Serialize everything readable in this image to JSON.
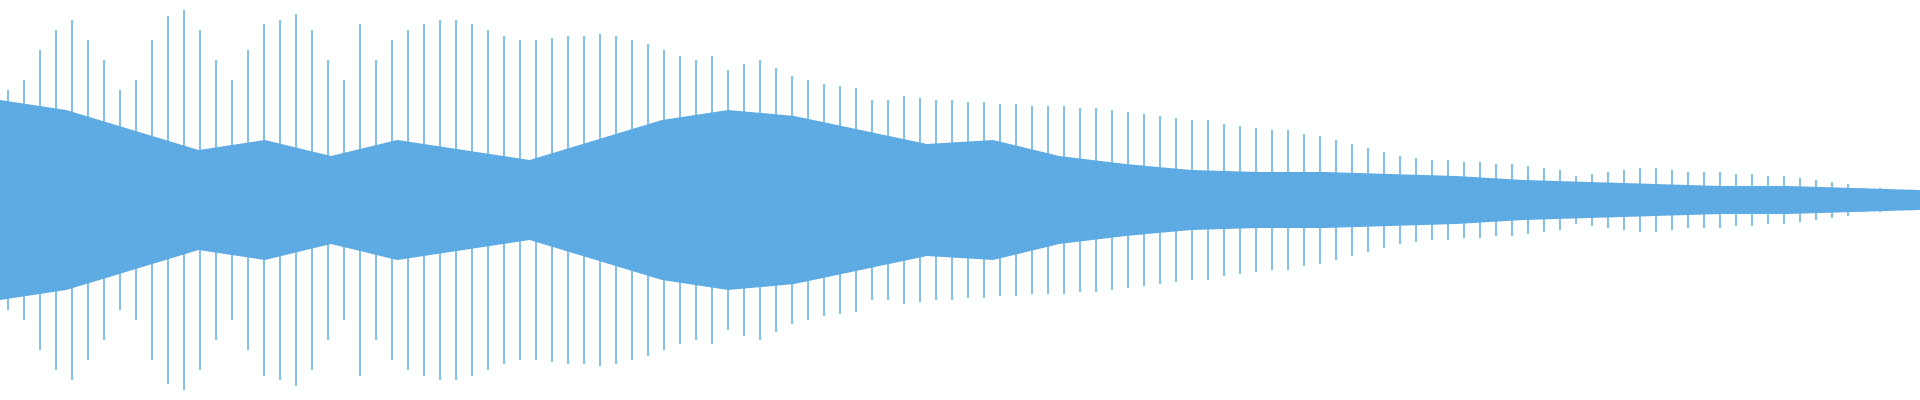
{
  "chart_data": {
    "type": "waveform",
    "color": "#5dabe2",
    "ylim": [
      -1,
      1
    ],
    "peaks": {
      "values": [
        0.55,
        0.6,
        0.75,
        0.85,
        0.9,
        0.8,
        0.7,
        0.55,
        0.6,
        0.8,
        0.92,
        0.95,
        0.85,
        0.7,
        0.6,
        0.75,
        0.88,
        0.9,
        0.93,
        0.85,
        0.7,
        0.6,
        0.88,
        0.7,
        0.8,
        0.85,
        0.88,
        0.9,
        0.9,
        0.88,
        0.85,
        0.82,
        0.8,
        0.8,
        0.81,
        0.82,
        0.82,
        0.83,
        0.82,
        0.8,
        0.78,
        0.75,
        0.72,
        0.7,
        0.72,
        0.65,
        0.68,
        0.7,
        0.66,
        0.62,
        0.6,
        0.58,
        0.57,
        0.56,
        0.5,
        0.5,
        0.52,
        0.51,
        0.5,
        0.5,
        0.49,
        0.49,
        0.48,
        0.48,
        0.47,
        0.47,
        0.47,
        0.46,
        0.46,
        0.45,
        0.44,
        0.43,
        0.42,
        0.41,
        0.4,
        0.4,
        0.38,
        0.37,
        0.36,
        0.35,
        0.35,
        0.33,
        0.32,
        0.3,
        0.28,
        0.26,
        0.24,
        0.22,
        0.21,
        0.2,
        0.2,
        0.19,
        0.19,
        0.18,
        0.18,
        0.17,
        0.16,
        0.15,
        0.12,
        0.13,
        0.14,
        0.15,
        0.16,
        0.16,
        0.15,
        0.14,
        0.14,
        0.14,
        0.13,
        0.13,
        0.12,
        0.12,
        0.11,
        0.1,
        0.09,
        0.08,
        0.06,
        0.06,
        0.05,
        0.05
      ]
    },
    "body": {
      "values": [
        0.5,
        0.45,
        0.35,
        0.25,
        0.3,
        0.22,
        0.3,
        0.25,
        0.2,
        0.3,
        0.4,
        0.45,
        0.42,
        0.35,
        0.28,
        0.3,
        0.22,
        0.18,
        0.15,
        0.14,
        0.14,
        0.13,
        0.12,
        0.1,
        0.09,
        0.08,
        0.07,
        0.07,
        0.06,
        0.05
      ]
    }
  }
}
